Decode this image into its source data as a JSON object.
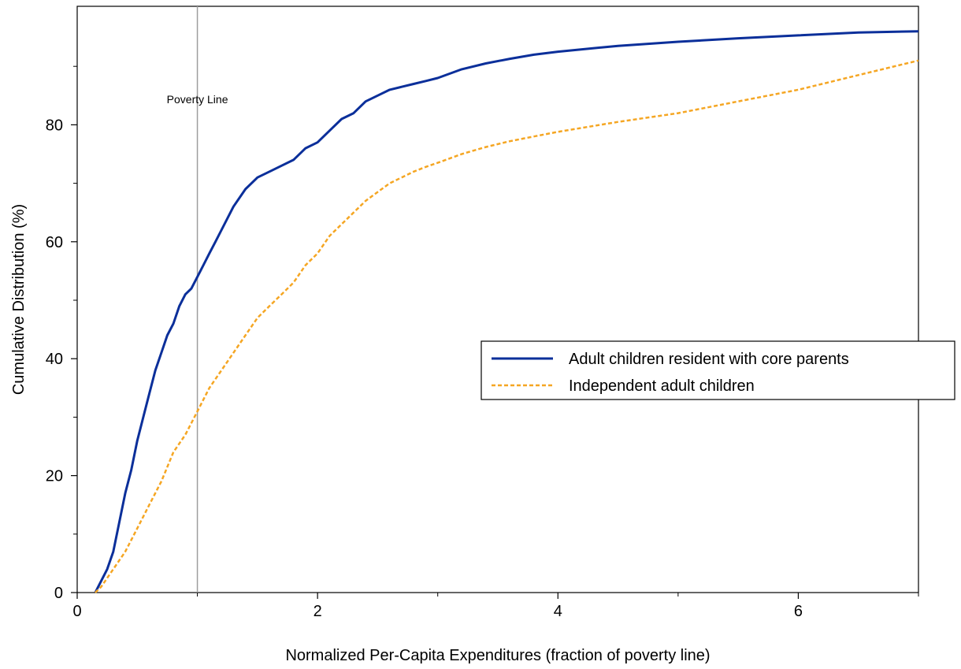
{
  "chart_data": {
    "type": "line",
    "xlabel": "Normalized Per-Capita Expenditures (fraction of poverty line)",
    "ylabel": "Cumulative Distribution (%)",
    "xlim": [
      0,
      7
    ],
    "ylim": [
      0,
      100
    ],
    "x_ticks": [
      0,
      2,
      4,
      6
    ],
    "y_ticks": [
      0,
      20,
      40,
      60,
      80
    ],
    "grid": false,
    "legend_position": "center-right",
    "annotations": [
      {
        "text": "Poverty Line",
        "x": 1.0
      }
    ],
    "colors": {
      "series_1": "#0b2f9a",
      "series_2": "#f5a623",
      "poverty_line": "#9e9e9e"
    },
    "series": [
      {
        "name": "Adult children resident with core parents",
        "style": "solid",
        "x": [
          0.15,
          0.2,
          0.25,
          0.3,
          0.35,
          0.4,
          0.45,
          0.5,
          0.55,
          0.6,
          0.65,
          0.7,
          0.75,
          0.8,
          0.85,
          0.9,
          0.95,
          1.0,
          1.05,
          1.1,
          1.15,
          1.2,
          1.3,
          1.4,
          1.5,
          1.6,
          1.7,
          1.8,
          1.9,
          2.0,
          2.1,
          2.2,
          2.3,
          2.4,
          2.5,
          2.6,
          2.7,
          2.8,
          2.9,
          3.0,
          3.2,
          3.4,
          3.6,
          3.8,
          4.0,
          4.5,
          5.0,
          5.5,
          6.0,
          6.5,
          7.0
        ],
        "values": [
          0,
          2,
          4,
          7,
          12,
          17,
          21,
          26,
          30,
          34,
          38,
          41,
          44,
          46,
          49,
          51,
          52,
          54,
          56,
          58,
          60,
          62,
          66,
          69,
          71,
          72,
          73,
          74,
          76,
          77,
          79,
          81,
          82,
          84,
          85,
          86,
          86.5,
          87,
          87.5,
          88,
          89.5,
          90.5,
          91.3,
          92,
          92.5,
          93.5,
          94.2,
          94.8,
          95.3,
          95.8,
          96
        ]
      },
      {
        "name": "Independent adult children",
        "style": "dashed",
        "x": [
          0.15,
          0.2,
          0.3,
          0.4,
          0.5,
          0.6,
          0.7,
          0.8,
          0.9,
          1.0,
          1.1,
          1.2,
          1.3,
          1.4,
          1.5,
          1.6,
          1.7,
          1.8,
          1.9,
          2.0,
          2.1,
          2.2,
          2.3,
          2.4,
          2.5,
          2.6,
          2.7,
          2.8,
          2.9,
          3.0,
          3.2,
          3.4,
          3.6,
          3.8,
          4.0,
          4.5,
          5.0,
          5.5,
          6.0,
          6.5,
          7.0
        ],
        "values": [
          0,
          1,
          4,
          7,
          11,
          15,
          19,
          24,
          27,
          31,
          35,
          38,
          41,
          44,
          47,
          49,
          51,
          53,
          56,
          58,
          61,
          63,
          65,
          67,
          68.5,
          70,
          71,
          72,
          72.8,
          73.5,
          75,
          76.2,
          77.2,
          78,
          78.8,
          80.5,
          82,
          84,
          86,
          88.5,
          91
        ]
      }
    ]
  }
}
